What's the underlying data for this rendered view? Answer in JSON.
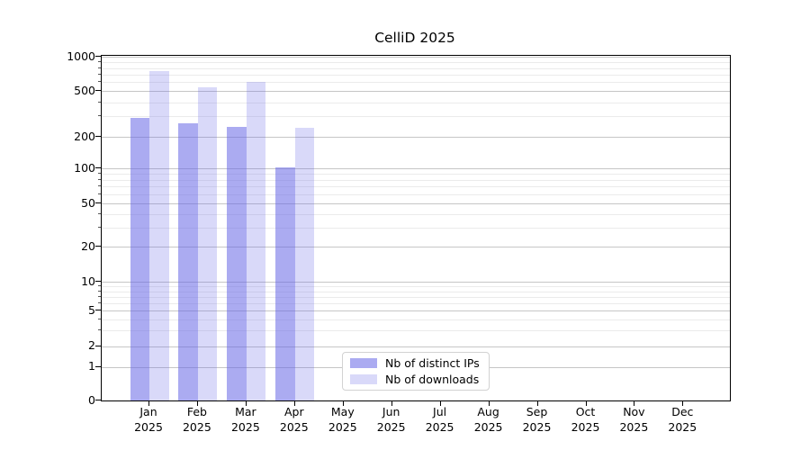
{
  "figure": {
    "title": "CelliD 2025"
  },
  "chart_data": {
    "type": "bar",
    "title": "CelliD 2025",
    "categories": [
      "Jan 2025",
      "Feb 2025",
      "Mar 2025",
      "Apr 2025",
      "May 2025",
      "Jun 2025",
      "Jul 2025",
      "Aug 2025",
      "Sep 2025",
      "Oct 2025",
      "Nov 2025",
      "Dec 2025"
    ],
    "series": [
      {
        "name": "Nb of distinct IPs",
        "color": "rgba(102,102,230,0.55)",
        "color_hex_on_white": "#abaaf1",
        "values": [
          290,
          260,
          245,
          103,
          null,
          null,
          null,
          null,
          null,
          null,
          null,
          null
        ]
      },
      {
        "name": "Nb of downloads",
        "color": "rgba(102,102,230,0.25)",
        "color_hex_on_white": "#d9d9f9",
        "values": [
          750,
          540,
          610,
          240,
          null,
          null,
          null,
          null,
          null,
          null,
          null,
          null
        ]
      }
    ],
    "xlabel": "",
    "ylabel": "",
    "y_axis": {
      "scale": "symlog",
      "ticks": [
        0,
        1,
        2,
        5,
        10,
        20,
        50,
        100,
        200,
        500,
        1000
      ],
      "minor_gridline_values": [
        3,
        4,
        6,
        7,
        8,
        9,
        30,
        40,
        60,
        70,
        80,
        90,
        300,
        400,
        600,
        700,
        800,
        900
      ],
      "range": [
        0,
        1000
      ]
    },
    "grid": {
      "horizontal": "major+minor",
      "vertical": false
    },
    "legend_position": "inside-bottom-center"
  }
}
